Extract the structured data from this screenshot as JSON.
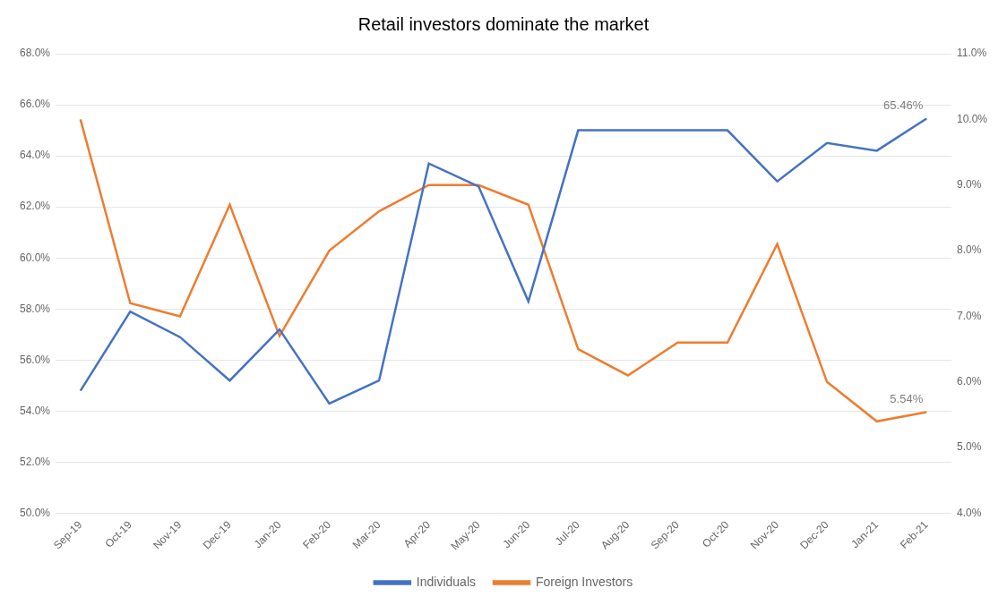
{
  "chart_data": {
    "type": "line",
    "title": "Retail investors dominate the market",
    "categories": [
      "Sep-19",
      "Oct-19",
      "Nov-19",
      "Dec-19",
      "Jan-20",
      "Feb-20",
      "Mar-20",
      "Apr-20",
      "May-20",
      "Jun-20",
      "Jul-20",
      "Aug-20",
      "Sep-20",
      "Oct-20",
      "Nov-20",
      "Dec-20",
      "Jan-21",
      "Feb-21"
    ],
    "series": [
      {
        "name": "Individuals",
        "color": "#4472C4",
        "axis": "y",
        "values": [
          54.8,
          57.9,
          56.9,
          55.2,
          57.2,
          54.3,
          55.2,
          63.7,
          62.8,
          58.3,
          65.0,
          65.0,
          65.0,
          65.0,
          63.0,
          64.5,
          64.2,
          65.46
        ]
      },
      {
        "name": "Foreign Investors",
        "color": "#ED7D31",
        "axis": "y2",
        "values": [
          10.0,
          7.2,
          7.0,
          8.7,
          6.7,
          8.0,
          8.6,
          9.0,
          9.0,
          8.7,
          6.5,
          6.1,
          6.6,
          6.6,
          8.1,
          6.0,
          5.4,
          5.54
        ]
      }
    ],
    "ylim": [
      50.0,
      68.0
    ],
    "yticks": [
      {
        "value": 50.0,
        "label": "50.0%"
      },
      {
        "value": 52.0,
        "label": "52.0%"
      },
      {
        "value": 54.0,
        "label": "54.0%"
      },
      {
        "value": 56.0,
        "label": "56.0%"
      },
      {
        "value": 58.0,
        "label": "58.0%"
      },
      {
        "value": 60.0,
        "label": "60.0%"
      },
      {
        "value": 62.0,
        "label": "62.0%"
      },
      {
        "value": 64.0,
        "label": "64.0%"
      },
      {
        "value": 66.0,
        "label": "66.0%"
      },
      {
        "value": 68.0,
        "label": "68.0%"
      }
    ],
    "y2lim": [
      4.0,
      11.0
    ],
    "y2ticks": [
      {
        "value": 4.0,
        "label": "4.0%"
      },
      {
        "value": 5.0,
        "label": "5.0%"
      },
      {
        "value": 6.0,
        "label": "6.0%"
      },
      {
        "value": 7.0,
        "label": "7.0%"
      },
      {
        "value": 8.0,
        "label": "8.0%"
      },
      {
        "value": 9.0,
        "label": "9.0%"
      },
      {
        "value": 10.0,
        "label": "10.0%"
      },
      {
        "value": 11.0,
        "label": "11.0%"
      }
    ],
    "annotations": [
      {
        "text": "65.46%",
        "x": "Feb-21",
        "y": 65.46,
        "axis": "y"
      },
      {
        "text": "5.54%",
        "x": "Feb-21",
        "y": 5.54,
        "axis": "y2"
      }
    ],
    "grid": true,
    "legend": "bottom"
  }
}
